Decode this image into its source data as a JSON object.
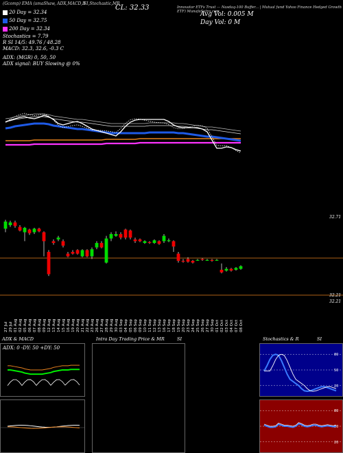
{
  "header": {
    "left": "(Gcomp) EMA (smaShaw, ADX,MACD,B",
    "mid": "SI,Stochastic,MR",
    "cl_prefix": "CL:",
    "cl_value": "32.33",
    "right": "Innovator ETFs Trust — Nasdaq-100 Buffer... | Mutual fund Yahoo Finance Hedged Growth ETF) MunafaSutra.com",
    "avg_vol": "Avg Vol: 0.005 M",
    "day_vol": "Day Vol: 0   M"
  },
  "indicators": {
    "ma20": "20   Day  = 32.34",
    "ma50": "50   Day  = 32.75",
    "ma200": "200  Day  = 32.34",
    "stoch": "Stochastics = 7.79",
    "rsi": "R          SI 14/5: 49.76  / 48.28",
    "macd": "MACD: 32.3,  32.6,  -0.3 C",
    "adx": "ADX:                          (MGR) 0,  50,  50",
    "adx_signal": "ADX  signal:                        BUY Slowing @ 0%"
  },
  "colors": {
    "ma20": "#ffffff",
    "ma50": "#1e5ae6",
    "ma200": "#ff33ff",
    "up": "#00dd00",
    "down": "#ee0000",
    "orange": "#e8821e",
    "bg": "#000000"
  },
  "price_labels": {
    "top": "32.71",
    "mid1": "32.21",
    "mid2": "32.21"
  },
  "dates": [
    "27 Jul",
    "29 Jul",
    "01 Aug",
    "02 Aug",
    "05 Aug",
    "06 Aug",
    "07 Aug",
    "08 Aug",
    "09 Aug",
    "12 Aug",
    "13 Aug",
    "14 Aug",
    "15 Aug",
    "16 Aug",
    "19 Aug",
    "20 Aug",
    "21 Aug",
    "22 Aug",
    "23 Aug",
    "26 Aug",
    "27 Aug",
    "28 Aug",
    "29 Aug",
    "30 Aug",
    "03 Sep",
    "04 Sep",
    "05 Sep",
    "06 Sep",
    "09 Sep",
    "10 Sep",
    "11 Sep",
    "12 Sep",
    "13 Sep",
    "16 Sep",
    "17 Sep",
    "18 Sep",
    "19 Sep",
    "20 Sep",
    "23 Sep",
    "24 Sep",
    "25 Sep",
    "26 Sep",
    "27 Sep",
    "30 Sep",
    "01 Oct",
    "02 Oct",
    "03 Oct",
    "04 Oct",
    "07 Oct",
    "08 Oct"
  ],
  "chart_data": {
    "type": "candlestick",
    "candles": [
      {
        "o": 0.86,
        "c": 0.94,
        "h": 0.96,
        "l": 0.82
      },
      {
        "o": 0.9,
        "c": 0.93,
        "h": 0.95,
        "l": 0.88
      },
      {
        "o": 0.93,
        "c": 0.89,
        "h": 0.95,
        "l": 0.87
      },
      {
        "o": 0.88,
        "c": 0.84,
        "h": 0.9,
        "l": 0.83
      },
      {
        "o": 0.82,
        "c": 0.87,
        "h": 0.88,
        "l": 0.72
      },
      {
        "o": 0.85,
        "c": 0.81,
        "h": 0.86,
        "l": 0.79
      },
      {
        "o": 0.82,
        "c": 0.86,
        "h": 0.87,
        "l": 0.8
      },
      {
        "o": 0.86,
        "c": 0.83,
        "h": 0.87,
        "l": 0.82
      },
      {
        "o": 0.82,
        "c": 0.72,
        "h": 0.83,
        "l": 0.55
      },
      {
        "o": 0.6,
        "c": 0.35,
        "h": 0.62,
        "l": 0.33
      },
      {
        "o": 0.72,
        "c": 0.7,
        "h": 0.74,
        "l": 0.68
      },
      {
        "o": 0.74,
        "c": 0.76,
        "h": 0.78,
        "l": 0.72
      },
      {
        "o": 0.72,
        "c": 0.67,
        "h": 0.74,
        "l": 0.65
      },
      {
        "o": 0.58,
        "c": 0.55,
        "h": 0.6,
        "l": 0.54
      },
      {
        "o": 0.6,
        "c": 0.58,
        "h": 0.62,
        "l": 0.57
      },
      {
        "o": 0.62,
        "c": 0.58,
        "h": 0.63,
        "l": 0.57
      },
      {
        "o": 0.55,
        "c": 0.62,
        "h": 0.63,
        "l": 0.54
      },
      {
        "o": 0.62,
        "c": 0.55,
        "h": 0.63,
        "l": 0.54
      },
      {
        "o": 0.55,
        "c": 0.63,
        "h": 0.65,
        "l": 0.52
      },
      {
        "o": 0.65,
        "c": 0.7,
        "h": 0.72,
        "l": 0.63
      },
      {
        "o": 0.7,
        "c": 0.65,
        "h": 0.72,
        "l": 0.64
      },
      {
        "o": 0.48,
        "c": 0.75,
        "h": 0.78,
        "l": 0.47
      },
      {
        "o": 0.75,
        "c": 0.8,
        "h": 0.82,
        "l": 0.72
      },
      {
        "o": 0.78,
        "c": 0.8,
        "h": 0.83,
        "l": 0.77
      },
      {
        "o": 0.8,
        "c": 0.76,
        "h": 0.82,
        "l": 0.74
      },
      {
        "o": 0.85,
        "c": 0.76,
        "h": 0.86,
        "l": 0.74
      },
      {
        "o": 0.84,
        "c": 0.76,
        "h": 0.85,
        "l": 0.74
      },
      {
        "o": 0.74,
        "c": 0.72,
        "h": 0.76,
        "l": 0.7
      },
      {
        "o": 0.74,
        "c": 0.72,
        "h": 0.75,
        "l": 0.71
      },
      {
        "o": 0.7,
        "c": 0.72,
        "h": 0.73,
        "l": 0.69
      },
      {
        "o": 0.71,
        "c": 0.7,
        "h": 0.72,
        "l": 0.69
      },
      {
        "o": 0.7,
        "c": 0.73,
        "h": 0.74,
        "l": 0.69
      },
      {
        "o": 0.72,
        "c": 0.69,
        "h": 0.73,
        "l": 0.68
      },
      {
        "o": 0.72,
        "c": 0.78,
        "h": 0.8,
        "l": 0.7
      },
      {
        "o": 0.72,
        "c": 0.73,
        "h": 0.75,
        "l": 0.71
      },
      {
        "o": 0.72,
        "c": 0.66,
        "h": 0.73,
        "l": 0.6
      },
      {
        "o": 0.58,
        "c": 0.5,
        "h": 0.6,
        "l": 0.48
      },
      {
        "o": 0.5,
        "c": 0.49,
        "h": 0.52,
        "l": 0.48
      },
      {
        "o": 0.52,
        "c": 0.49,
        "h": 0.54,
        "l": 0.48
      },
      {
        "o": 0.5,
        "c": 0.48,
        "h": 0.51,
        "l": 0.47
      },
      {
        "o": 0.51,
        "c": 0.51,
        "h": 0.52,
        "l": 0.5
      },
      {
        "o": 0.52,
        "c": 0.51,
        "h": 0.53,
        "l": 0.5
      },
      {
        "o": 0.51,
        "c": 0.51,
        "h": 0.52,
        "l": 0.5
      },
      {
        "o": 0.51,
        "c": 0.5,
        "h": 0.52,
        "l": 0.49
      },
      {
        "o": 0.51,
        "c": 0.51,
        "h": 0.52,
        "l": 0.5
      },
      {
        "o": 0.4,
        "c": 0.37,
        "h": 0.47,
        "l": 0.36
      },
      {
        "o": 0.39,
        "c": 0.41,
        "h": 0.43,
        "l": 0.38
      },
      {
        "o": 0.41,
        "c": 0.39,
        "h": 0.42,
        "l": 0.38
      },
      {
        "o": 0.4,
        "c": 0.42,
        "h": 0.43,
        "l": 0.39
      },
      {
        "o": 0.41,
        "c": 0.44,
        "h": 0.45,
        "l": 0.4
      }
    ],
    "ma20_line": [
      0.62,
      0.65,
      0.67,
      0.69,
      0.7,
      0.68,
      0.67,
      0.69,
      0.72,
      0.7,
      0.66,
      0.6,
      0.58,
      0.6,
      0.62,
      0.63,
      0.6,
      0.56,
      0.52,
      0.5,
      0.48,
      0.46,
      0.44,
      0.42,
      0.48,
      0.56,
      0.62,
      0.65,
      0.66,
      0.66,
      0.66,
      0.66,
      0.66,
      0.66,
      0.63,
      0.58,
      0.55,
      0.54,
      0.54,
      0.54,
      0.54,
      0.52,
      0.48,
      0.36,
      0.24,
      0.24,
      0.26,
      0.25,
      0.22,
      0.2
    ],
    "ma50_line": [
      0.53,
      0.54,
      0.56,
      0.57,
      0.58,
      0.59,
      0.6,
      0.6,
      0.6,
      0.59,
      0.57,
      0.56,
      0.55,
      0.54,
      0.53,
      0.52,
      0.52,
      0.51,
      0.5,
      0.49,
      0.48,
      0.47,
      0.46,
      0.46,
      0.46,
      0.46,
      0.46,
      0.46,
      0.46,
      0.46,
      0.47,
      0.47,
      0.47,
      0.47,
      0.47,
      0.47,
      0.46,
      0.46,
      0.45,
      0.44,
      0.43,
      0.42,
      0.41,
      0.41,
      0.4,
      0.39,
      0.38,
      0.37,
      0.36,
      0.35
    ],
    "ma200_line": [
      0.29,
      0.29,
      0.29,
      0.29,
      0.29,
      0.29,
      0.3,
      0.3,
      0.3,
      0.3,
      0.3,
      0.3,
      0.3,
      0.3,
      0.3,
      0.3,
      0.3,
      0.3,
      0.3,
      0.3,
      0.3,
      0.31,
      0.31,
      0.31,
      0.31,
      0.31,
      0.31,
      0.31,
      0.32,
      0.32,
      0.32,
      0.32,
      0.32,
      0.32,
      0.32,
      0.32,
      0.32,
      0.32,
      0.32,
      0.32,
      0.32,
      0.32,
      0.32,
      0.32,
      0.32,
      0.32,
      0.32,
      0.32,
      0.32,
      0.32
    ],
    "adx_green": [
      50,
      50,
      49,
      48,
      47,
      46,
      44,
      43,
      42,
      42,
      42,
      42,
      42,
      43,
      44,
      45,
      47,
      48,
      49,
      50,
      50,
      50,
      51,
      51,
      51,
      51
    ],
    "stoch_blue": [
      48,
      58,
      70,
      78,
      80,
      78,
      68,
      55,
      42,
      32,
      28,
      24,
      20,
      14,
      10,
      9,
      10,
      12,
      14,
      16,
      18,
      18,
      16,
      14,
      12,
      10
    ],
    "rsi_blue": [
      52,
      50,
      48,
      48,
      49,
      54,
      52,
      50,
      50,
      49,
      48,
      50,
      55,
      53,
      50,
      49,
      50,
      52,
      52,
      50,
      49,
      50,
      51,
      50,
      49,
      50
    ],
    "title": "",
    "ylabel": ""
  },
  "panels": {
    "adx_title": "ADX  & MACD",
    "adx_readout": "ADX: 0  -DY: 50  +DY: 50",
    "intraday_title": "Intra  Day Trading Price  & MR",
    "intraday_si": "SI",
    "stoch_title": "Stochastics & R",
    "stoch_si": "SI",
    "stoch_ticks": [
      "80",
      "50",
      "20"
    ],
    "rsi_ticks": [
      "80",
      "50",
      "20"
    ]
  }
}
